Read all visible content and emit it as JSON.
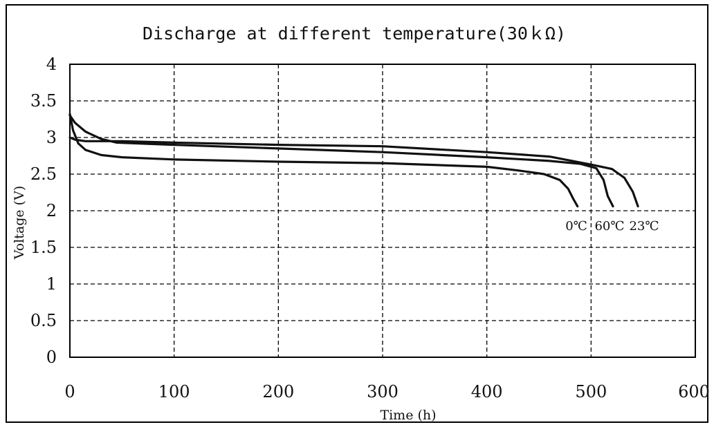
{
  "chart_data": {
    "type": "line",
    "title": "Discharge at different temperature(30ｋΩ)",
    "xlabel": "Time (h)",
    "ylabel": "Voltage (V)",
    "xlim": [
      0,
      600
    ],
    "ylim": [
      0,
      4
    ],
    "xticks": [
      0,
      100,
      200,
      300,
      400,
      500,
      600
    ],
    "yticks": [
      0,
      0.5,
      1,
      1.5,
      2,
      2.5,
      3,
      3.5,
      4
    ],
    "xtick_labels": [
      "0",
      "100",
      "200",
      "300",
      "400",
      "500",
      "600"
    ],
    "ytick_labels": [
      "0",
      "0.5",
      "1",
      "1.5",
      "2",
      "2.5",
      "3",
      "3.5",
      "4"
    ],
    "grid": true,
    "line_color": "#111111",
    "series": [
      {
        "name": "0℃",
        "points": [
          [
            0,
            3.32
          ],
          [
            3,
            3.1
          ],
          [
            8,
            2.92
          ],
          [
            15,
            2.83
          ],
          [
            30,
            2.76
          ],
          [
            50,
            2.73
          ],
          [
            100,
            2.7
          ],
          [
            200,
            2.67
          ],
          [
            300,
            2.65
          ],
          [
            400,
            2.6
          ],
          [
            430,
            2.55
          ],
          [
            455,
            2.5
          ],
          [
            470,
            2.42
          ],
          [
            478,
            2.3
          ],
          [
            483,
            2.16
          ],
          [
            487,
            2.06
          ]
        ]
      },
      {
        "name": "60℃",
        "points": [
          [
            0,
            3.3
          ],
          [
            5,
            3.2
          ],
          [
            15,
            3.08
          ],
          [
            30,
            2.98
          ],
          [
            45,
            2.93
          ],
          [
            100,
            2.9
          ],
          [
            200,
            2.85
          ],
          [
            300,
            2.8
          ],
          [
            400,
            2.73
          ],
          [
            460,
            2.68
          ],
          [
            490,
            2.64
          ],
          [
            505,
            2.58
          ],
          [
            512,
            2.42
          ],
          [
            516,
            2.2
          ],
          [
            521,
            2.06
          ]
        ]
      },
      {
        "name": "23℃",
        "points": [
          [
            0,
            3.0
          ],
          [
            5,
            2.97
          ],
          [
            15,
            2.95
          ],
          [
            50,
            2.95
          ],
          [
            100,
            2.93
          ],
          [
            200,
            2.9
          ],
          [
            300,
            2.88
          ],
          [
            400,
            2.8
          ],
          [
            460,
            2.74
          ],
          [
            500,
            2.63
          ],
          [
            520,
            2.57
          ],
          [
            532,
            2.45
          ],
          [
            540,
            2.26
          ],
          [
            545,
            2.06
          ]
        ]
      }
    ],
    "annotations": [
      "0℃",
      "60℃",
      "23℃"
    ]
  }
}
